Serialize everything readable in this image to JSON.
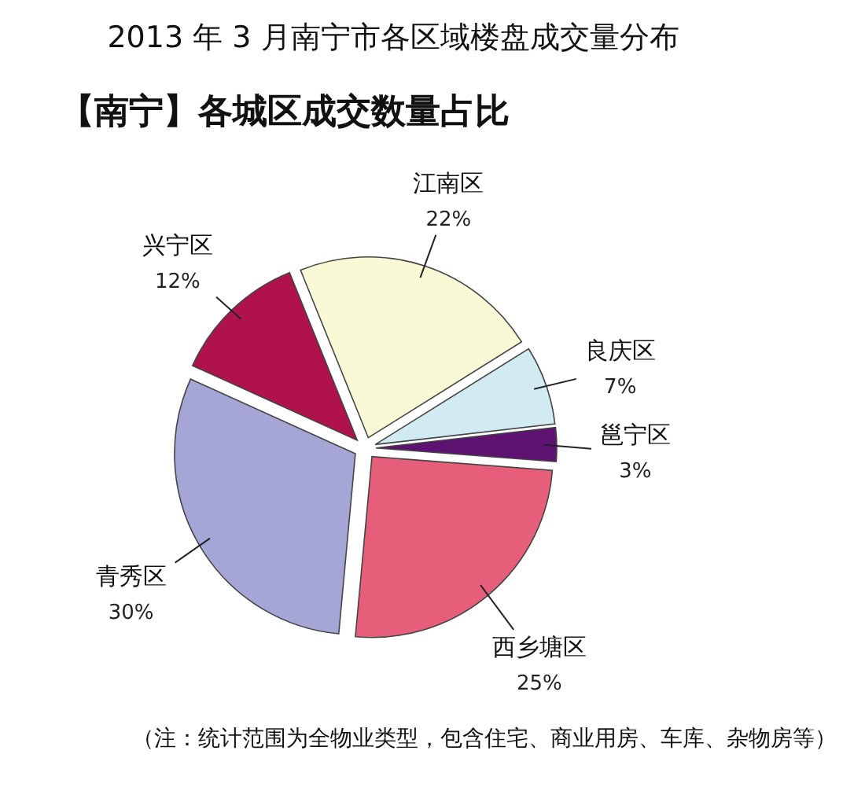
{
  "chart_data": {
    "type": "pie",
    "title": "2013 年 3 月南宁市各区域楼盘成交量分布",
    "subtitle": "【南宁】各城区成交数量占比",
    "categories": [
      "江南区",
      "良庆区",
      "邕宁区",
      "西乡塘区",
      "青秀区",
      "兴宁区"
    ],
    "values": [
      22,
      7,
      3,
      25,
      30,
      12
    ],
    "value_labels": [
      "22%",
      "7%",
      "3%",
      "25%",
      "30%",
      "12%"
    ],
    "colors": [
      "#f9f9d6",
      "#d2eaf2",
      "#5e1272",
      "#e65e7a",
      "#a6a6d6",
      "#b0124c"
    ],
    "annotations": [
      "（注：统计范围为全物业类型，包含住宅、商业用房、车库、杂物房等）"
    ]
  }
}
